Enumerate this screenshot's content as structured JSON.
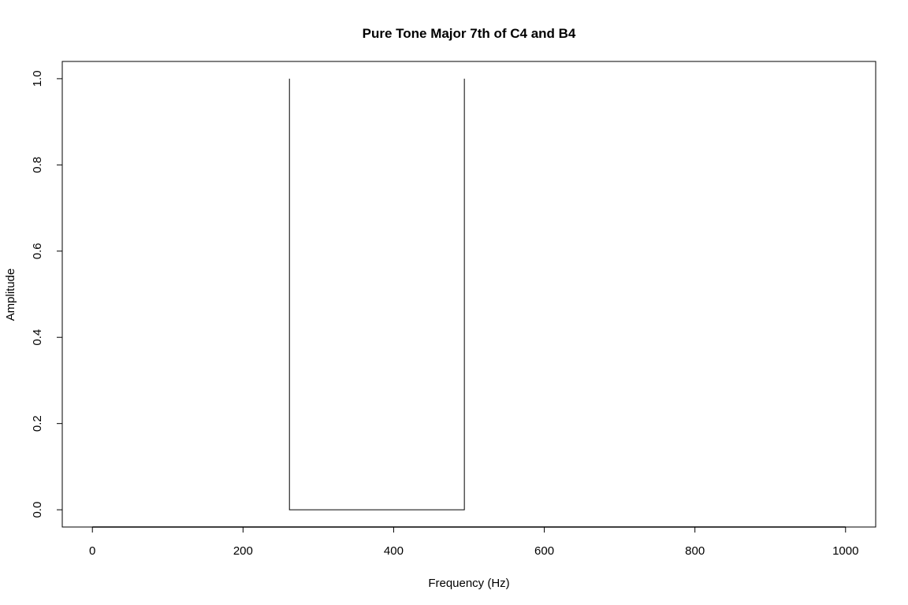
{
  "chart_data": {
    "type": "line",
    "title": "Pure Tone Major 7th of C4 and B4",
    "xlabel": "Frequency (Hz)",
    "ylabel": "Amplitude",
    "xlim": [
      -40,
      1040
    ],
    "ylim": [
      -0.04,
      1.04
    ],
    "x_ticks": [
      0,
      200,
      400,
      600,
      800,
      1000
    ],
    "x_tick_labels": [
      "0",
      "200",
      "400",
      "600",
      "800",
      "1000"
    ],
    "y_ticks": [
      0.0,
      0.2,
      0.4,
      0.6,
      0.8,
      1.0
    ],
    "y_tick_labels": [
      "0.0",
      "0.2",
      "0.4",
      "0.6",
      "0.8",
      "1.0"
    ],
    "grid": false,
    "legend": false,
    "series": [
      {
        "x": [
          261.63,
          261.63,
          493.88,
          493.88
        ],
        "y": [
          1.0,
          0.0,
          0.0,
          1.0
        ]
      }
    ],
    "baseline": {
      "x": [
        0,
        1000
      ],
      "y": -0.04
    },
    "line_color": "#000000"
  }
}
